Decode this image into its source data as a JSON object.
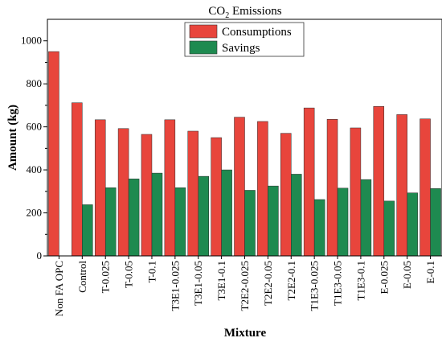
{
  "chart_data": {
    "type": "bar",
    "title": "CO",
    "title_subscript": "2",
    "title_suffix": " Emissions",
    "xlabel": "Mixture",
    "ylabel": "Amount (kg)",
    "ylim": [
      0,
      1100
    ],
    "yticks": [
      0,
      200,
      400,
      600,
      800,
      1000
    ],
    "grid": false,
    "legend_position": "top-center",
    "categories": [
      "Non FA OPC",
      "Control",
      "T-0.025",
      "T-0.05",
      "T-0.1",
      "T3E1-0.025",
      "T3E1-0.05",
      "T3E1-0.1",
      "T2E2-0.025",
      "T2E2-0.05",
      "T2E2-0.1",
      "T1E3-0.025",
      "T1E3-0.05",
      "T1E3-0.1",
      "E-0.025",
      "E-0.05",
      "E-0.1"
    ],
    "series": [
      {
        "name": "Consumptions",
        "color": "#e8453c",
        "values": [
          950,
          712,
          633,
          592,
          565,
          633,
          580,
          550,
          645,
          625,
          570,
          688,
          635,
          595,
          695,
          657,
          637
        ]
      },
      {
        "name": "Savings",
        "color": "#1e8a50",
        "values": [
          0,
          238,
          317,
          358,
          385,
          317,
          370,
          400,
          305,
          325,
          380,
          262,
          315,
          355,
          255,
          293,
          313
        ]
      }
    ]
  }
}
